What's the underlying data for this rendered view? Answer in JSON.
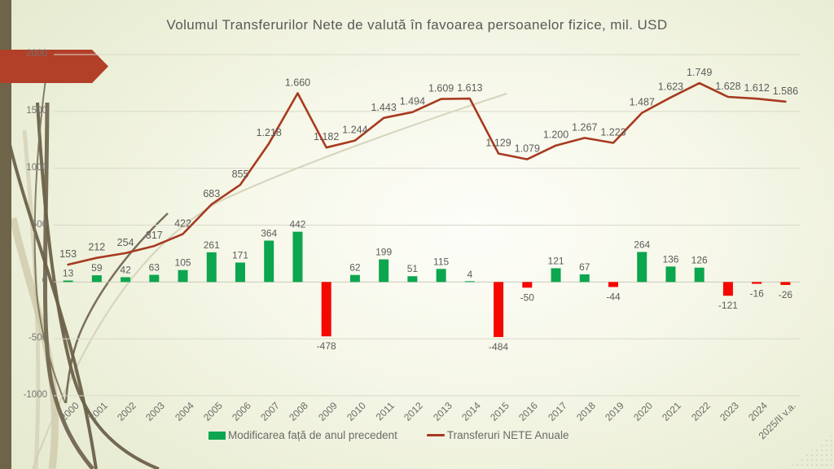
{
  "slide": {
    "title": "Volumul Transferurilor Nete de valută în favoarea persoanelor fizice, mil. USD"
  },
  "colors": {
    "bar_positive": "#0ca64e",
    "bar_negative": "#f50800",
    "line": "#a73a21",
    "accent_arrow": "#b23f28",
    "edge_strip": "#6e6449",
    "grid": "#d8d9ca",
    "zero_line": "#c9cabb",
    "label_text": "#5c5c5a",
    "axis_text": "#6b6b66"
  },
  "chart_data": {
    "type": "combo: bar + line",
    "title": "Volumul Transferurilor Nete de valută în favoarea persoanelor fizice, mil. USD",
    "categories": [
      "2000",
      "2001",
      "2002",
      "2003",
      "2004",
      "2005",
      "2006",
      "2007",
      "2008",
      "2009",
      "2010",
      "2011",
      "2012",
      "2013",
      "2014",
      "2015",
      "2016",
      "2017",
      "2018",
      "2019",
      "2020",
      "2021",
      "2022",
      "2023",
      "2024",
      "2025/II v.a."
    ],
    "series": [
      {
        "name": "Modificarea față de anul precedent",
        "type": "bar",
        "values": [
          13,
          59,
          42,
          63,
          105,
          261,
          171,
          364,
          442,
          -478,
          62,
          199,
          51,
          115,
          4,
          -484,
          -50,
          121,
          67,
          -44,
          264,
          136,
          126,
          -121,
          -16,
          -26
        ],
        "labels": [
          "13",
          "59",
          "42",
          "63",
          "105",
          "261",
          "171",
          "364",
          "442",
          "-478",
          "62",
          "199",
          "51",
          "115",
          "4",
          "-484",
          "-50",
          "121",
          "67",
          "-44",
          "264",
          "136",
          "126",
          "-121",
          "-16",
          "-26"
        ]
      },
      {
        "name": "Transferuri NETE Anuale",
        "type": "line",
        "values": [
          153,
          212,
          254,
          317,
          422,
          683,
          855,
          1218,
          1660,
          1182,
          1244,
          1443,
          1494,
          1609,
          1613,
          1129,
          1079,
          1200,
          1267,
          1223,
          1487,
          1623,
          1749,
          1628,
          1612,
          1586
        ],
        "labels": [
          "153",
          "212",
          "254",
          "317",
          "422",
          "683",
          "855",
          "1.218",
          "1.660",
          "1.182",
          "1.244",
          "1.443",
          "1.494",
          "1.609",
          "1.613",
          "1.129",
          "1.079",
          "1.200",
          "1.267",
          "1.223",
          "1.487",
          "1.623",
          "1.749",
          "1.628",
          "1.612",
          "1.586"
        ]
      }
    ],
    "ylim": [
      -1000,
      2000
    ],
    "yticks": [
      2000,
      1500,
      1000,
      500,
      0,
      -500,
      -1000
    ],
    "ytick_labels": [
      "2000",
      "1500",
      "1000",
      "500",
      "0",
      "-500",
      "-1000"
    ],
    "grid": "horizontal gridlines on",
    "legend_position": "bottom"
  }
}
